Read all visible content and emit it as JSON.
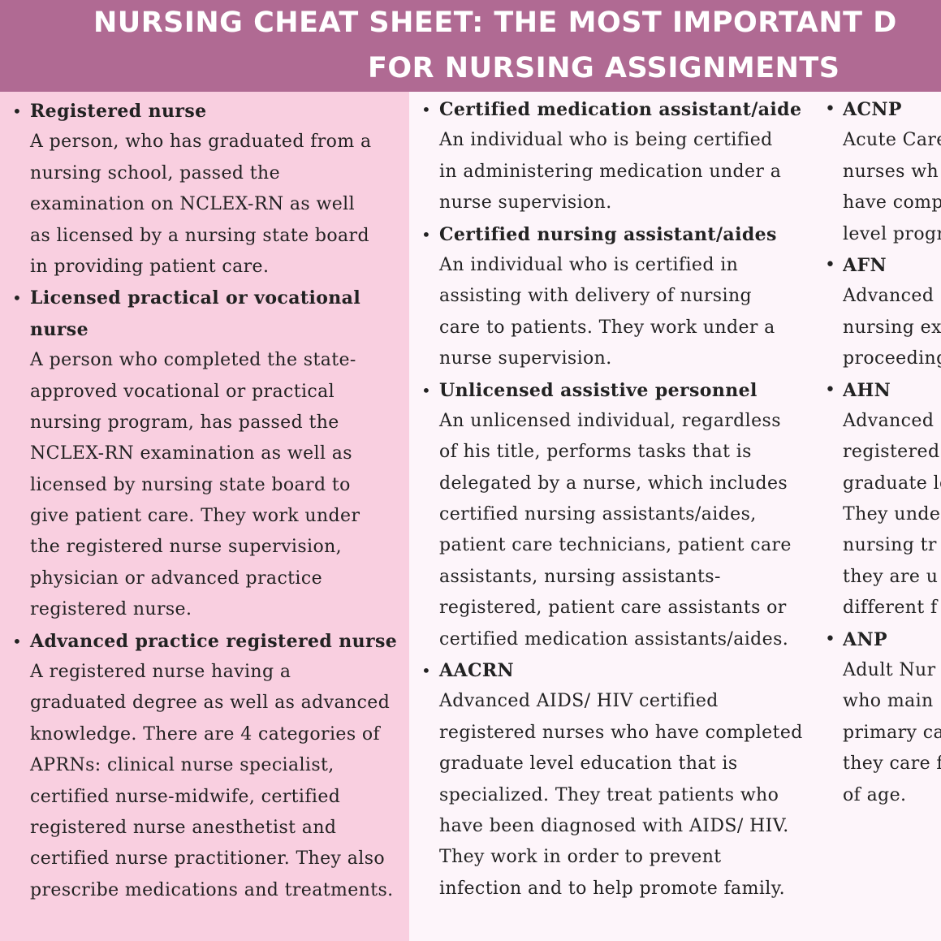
{
  "header": {
    "title_line1": "NURSING CHEAT SHEET: THE MOST IMPORTANT D",
    "title_line2": "FOR NURSING ASSIGNMENTS"
  },
  "colors": {
    "header": "#b06a93",
    "left_column": "#f9cfe0",
    "middle_column": "#fdf5fa"
  },
  "columns": [
    {
      "items": [
        {
          "term": [
            "Registered nurse"
          ],
          "desc": [
            "A person, who has graduated from a",
            "nursing school, passed the",
            "examination on NCLEX-RN as well",
            "as licensed by a nursing state board",
            "in providing patient care."
          ]
        },
        {
          "term": [
            "Licensed practical or vocational",
            "nurse"
          ],
          "desc": [
            "A person who completed the state-",
            "approved vocational or practical",
            "nursing program, has passed the",
            "NCLEX-RN examination as well as",
            "licensed by nursing state board to",
            "give patient care. They work under",
            "the registered nurse supervision,",
            "physician or advanced practice",
            "registered nurse."
          ]
        },
        {
          "term": [
            "Advanced practice registered nurse"
          ],
          "desc": [
            "A registered nurse having a",
            "graduated degree as well as advanced",
            "knowledge. There are 4 categories of",
            "APRNs: clinical nurse specialist,",
            "certified nurse-midwife, certified",
            "registered nurse anesthetist and",
            "certified nurse practitioner. They also",
            "prescribe medications and treatments."
          ]
        }
      ]
    },
    {
      "items": [
        {
          "term": [
            "Certified medication assistant/aide"
          ],
          "desc": [
            "An individual who is being certified",
            "in administering medication under a",
            "nurse supervision."
          ]
        },
        {
          "term": [
            "Certified nursing assistant/aides"
          ],
          "desc": [
            "An individual who is certified in",
            "assisting with delivery of nursing",
            "care to patients. They work under a",
            "nurse supervision."
          ]
        },
        {
          "term": [
            "Unlicensed assistive personnel"
          ],
          "desc": [
            "An unlicensed individual, regardless",
            "of his title, performs tasks that is",
            "delegated by a nurse, which includes",
            "certified nursing assistants/aides,",
            "patient care technicians, patient care",
            "assistants, nursing assistants-",
            "registered, patient care assistants or",
            "certified medication assistants/aides."
          ]
        },
        {
          "term": [
            "AACRN"
          ],
          "desc": [
            "Advanced AIDS/ HIV certified",
            "registered nurses who have completed",
            "graduate level education that is",
            "specialized. They treat patients who",
            "have been diagnosed with AIDS/ HIV.",
            "They work in order to prevent",
            "infection and to help promote family."
          ]
        }
      ]
    },
    {
      "items": [
        {
          "term": [
            "ACNP"
          ],
          "desc": [
            "Acute Care",
            "nurses wh",
            "have comp",
            "level progr"
          ]
        },
        {
          "term": [
            "AFN"
          ],
          "desc": [
            "Advanced",
            "nursing ex",
            "proceeding"
          ]
        },
        {
          "term": [
            "AHN"
          ],
          "desc": [
            "Advanced",
            "registered",
            "graduate le",
            "They unde",
            "nursing tr",
            "they are u",
            "different f"
          ]
        },
        {
          "term": [
            "ANP"
          ],
          "desc": [
            "Adult Nur",
            "who main",
            "primary ca",
            "they care f",
            "of age."
          ]
        }
      ]
    }
  ]
}
